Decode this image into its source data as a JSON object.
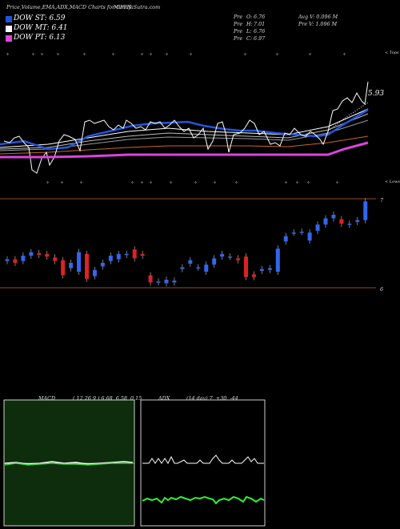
{
  "header": {
    "title": "Price,Volume,EMA,ADX,MACD Charts for CFFN",
    "site": "MunafaSutra.com",
    "stats": [
      {
        "label": "Pre",
        "key": "O:",
        "value": "6.76"
      },
      {
        "label": "Pre",
        "key": "H:",
        "value": "7.01"
      },
      {
        "label": "Pre",
        "key": "L:",
        "value": "6.76"
      },
      {
        "label": "Pre",
        "key": "C:",
        "value": "6.97"
      }
    ],
    "avg_vol": "Avg V: 0.096  M",
    "pre_vol": "Pre  V: 1.096  M"
  },
  "legend": [
    {
      "label": "DOW ST: 6.59",
      "color": "#2255dd"
    },
    {
      "label": "DOW MT: 6.41",
      "color": "#ffffff"
    },
    {
      "label": "DOW PT: 6.13",
      "color": "#dd44dd"
    }
  ],
  "price_panel": {
    "label_last": "5.93",
    "top_tag": "< Tops",
    "bottom_tag": "< Lows",
    "marker": "°"
  },
  "candle_panel": {
    "upper_level_label": "7",
    "lower_level_label": "6"
  },
  "macd": {
    "name": "MACD",
    "params": "( 12,26,9 ) 6.68, 6.58, 0.15"
  },
  "adx": {
    "name": "ADX",
    "params": "(14  day) 7, +30, -44"
  },
  "colors": {
    "bull": "#3366ee",
    "bear": "#dd2222",
    "ema_blue": "#2255dd",
    "magenta": "#dd44dd",
    "orange": "#cc6622"
  },
  "chart_data": [
    {
      "type": "line",
      "title": "Price,Volume,EMA,ADX,MACD Charts for CFFN",
      "series": [
        {
          "name": "DOW ST",
          "values": [
            6.59
          ]
        },
        {
          "name": "DOW MT",
          "values": [
            6.41
          ]
        },
        {
          "name": "DOW PT",
          "values": [
            6.13
          ]
        }
      ]
    },
    {
      "type": "bar",
      "title": "",
      "ylim": [
        6,
        7
      ],
      "candles": [
        {
          "o": 6.3,
          "c": 6.32
        },
        {
          "o": 6.32,
          "c": 6.28
        },
        {
          "o": 6.3,
          "c": 6.36
        },
        {
          "o": 6.36,
          "c": 6.4
        },
        {
          "o": 6.39,
          "c": 6.37
        },
        {
          "o": 6.38,
          "c": 6.35
        },
        {
          "o": 6.34,
          "c": 6.3
        },
        {
          "o": 6.31,
          "c": 6.14
        },
        {
          "o": 6.22,
          "c": 6.28
        },
        {
          "o": 6.18,
          "c": 6.4
        },
        {
          "o": 6.38,
          "c": 6.1
        },
        {
          "o": 6.13,
          "c": 6.2
        },
        {
          "o": 6.24,
          "c": 6.28
        },
        {
          "o": 6.3,
          "c": 6.36
        },
        {
          "o": 6.32,
          "c": 6.38
        },
        {
          "o": 6.37,
          "c": 6.38
        },
        {
          "o": 6.43,
          "c": 6.33
        },
        {
          "o": 6.38,
          "c": 6.36
        },
        {
          "o": 6.14,
          "c": 6.06
        },
        {
          "o": 6.06,
          "c": 6.07
        },
        {
          "o": 6.05,
          "c": 6.09
        },
        {
          "o": 6.06,
          "c": 6.08
        },
        {
          "o": 6.21,
          "c": 6.23
        },
        {
          "o": 6.27,
          "c": 6.31
        },
        {
          "o": 6.23,
          "c": 6.23
        },
        {
          "o": 6.18,
          "c": 6.26
        },
        {
          "o": 6.26,
          "c": 6.33
        },
        {
          "o": 6.35,
          "c": 6.38
        },
        {
          "o": 6.35,
          "c": 6.35
        },
        {
          "o": 6.33,
          "c": 6.31
        },
        {
          "o": 6.35,
          "c": 6.12
        },
        {
          "o": 6.15,
          "c": 6.12
        },
        {
          "o": 6.19,
          "c": 6.21
        },
        {
          "o": 6.2,
          "c": 6.22
        },
        {
          "o": 6.18,
          "c": 6.44
        },
        {
          "o": 6.52,
          "c": 6.58
        },
        {
          "o": 6.62,
          "c": 6.62
        },
        {
          "o": 6.63,
          "c": 6.63
        },
        {
          "o": 6.53,
          "c": 6.62
        },
        {
          "o": 6.64,
          "c": 6.71
        },
        {
          "o": 6.71,
          "c": 6.78
        },
        {
          "o": 6.78,
          "c": 6.82
        },
        {
          "o": 6.77,
          "c": 6.72
        },
        {
          "o": 6.71,
          "c": 6.72
        },
        {
          "o": 6.74,
          "c": 6.76
        },
        {
          "o": 6.76,
          "c": 6.97
        }
      ]
    }
  ]
}
